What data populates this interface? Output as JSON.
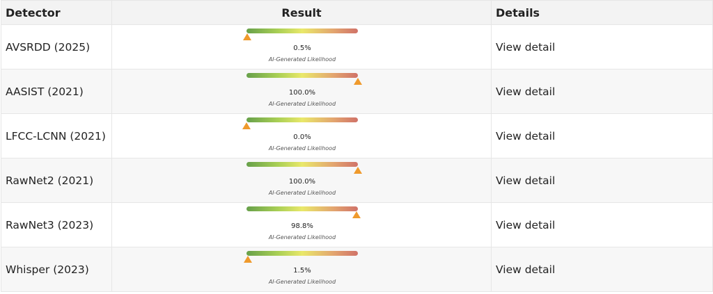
{
  "table": {
    "headers": {
      "detector": "Detector",
      "result": "Result",
      "details": "Details"
    },
    "caption": "AI-Generated Likelihood",
    "rows": [
      {
        "detector": "AVSRDD (2025)",
        "value_text": "0.5%",
        "likelihood": 0.005,
        "details": "View detail"
      },
      {
        "detector": "AASIST (2021)",
        "value_text": "100.0%",
        "likelihood": 1.0,
        "details": "View detail"
      },
      {
        "detector": "LFCC-LCNN (2021)",
        "value_text": "0.0%",
        "likelihood": 0.0,
        "details": "View detail"
      },
      {
        "detector": "RawNet2 (2021)",
        "value_text": "100.0%",
        "likelihood": 1.0,
        "details": "View detail"
      },
      {
        "detector": "RawNet3 (2023)",
        "value_text": "98.8%",
        "likelihood": 0.988,
        "details": "View detail"
      },
      {
        "detector": "Whisper (2023)",
        "value_text": "1.5%",
        "likelihood": 0.015,
        "details": "View detail"
      }
    ]
  },
  "colors": {
    "marker": "#ef9a2c",
    "meter_low": "#67a04a",
    "meter_mid": "#e9e86a",
    "meter_high": "#d07268"
  }
}
